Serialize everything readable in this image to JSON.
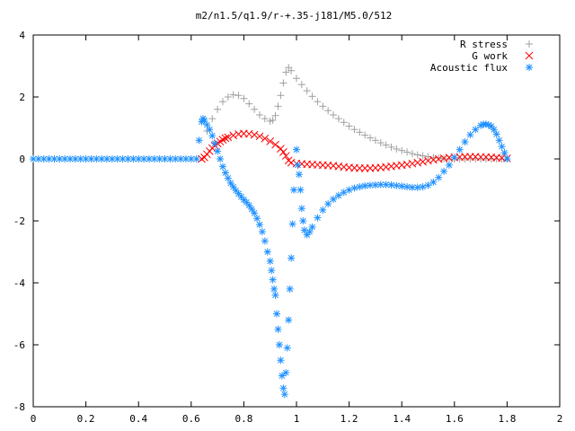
{
  "chart_data": {
    "type": "scatter",
    "title": "m2/n1.5/q1.9/r-+.35-j181/M5.0/512",
    "xlabel": "",
    "ylabel": "",
    "xlim": [
      0,
      2
    ],
    "ylim": [
      -8,
      4
    ],
    "xticks": [
      0,
      0.2,
      0.4,
      0.6,
      0.8,
      1,
      1.2,
      1.4,
      1.6,
      1.8,
      2
    ],
    "yticks": [
      -8,
      -6,
      -4,
      -2,
      0,
      2,
      4
    ],
    "xtick_labels": [
      "0",
      "0.2",
      "0.4",
      "0.6",
      "0.8",
      "1",
      "1.2",
      "1.4",
      "1.6",
      "1.8",
      "2"
    ],
    "ytick_labels": [
      "-8",
      "-6",
      "-4",
      "-2",
      "0",
      "2",
      "4"
    ],
    "grid": false,
    "legend_position": "top-right",
    "series": [
      {
        "name": "R stress",
        "marker": "plus",
        "color": "#a0a0a0",
        "x": [
          0.66,
          0.68,
          0.7,
          0.72,
          0.74,
          0.76,
          0.78,
          0.8,
          0.82,
          0.84,
          0.86,
          0.88,
          0.9,
          0.91,
          0.92,
          0.93,
          0.94,
          0.95,
          0.96,
          0.97,
          0.98,
          1.0,
          1.02,
          1.04,
          1.06,
          1.08,
          1.1,
          1.12,
          1.14,
          1.16,
          1.18,
          1.2,
          1.22,
          1.24,
          1.26,
          1.28,
          1.3,
          1.32,
          1.34,
          1.36,
          1.38,
          1.4,
          1.42,
          1.44,
          1.46,
          1.48,
          1.5,
          1.52,
          1.54,
          1.56,
          1.58,
          1.6,
          1.62,
          1.64,
          1.66,
          1.68,
          1.7,
          1.72,
          1.74,
          1.76,
          1.78,
          1.8
        ],
        "y": [
          0.9,
          1.3,
          1.6,
          1.85,
          2.0,
          2.07,
          2.05,
          1.95,
          1.78,
          1.6,
          1.42,
          1.3,
          1.22,
          1.25,
          1.4,
          1.7,
          2.05,
          2.45,
          2.8,
          2.95,
          2.85,
          2.6,
          2.4,
          2.2,
          2.02,
          1.85,
          1.7,
          1.56,
          1.42,
          1.3,
          1.18,
          1.06,
          0.95,
          0.86,
          0.77,
          0.68,
          0.6,
          0.52,
          0.45,
          0.38,
          0.32,
          0.27,
          0.22,
          0.17,
          0.13,
          0.1,
          0.07,
          0.05,
          0.03,
          0.01,
          0.0,
          0.0,
          0.0,
          0.0,
          0.0,
          0.0,
          0.0,
          0.0,
          0.0,
          0.0,
          0.0,
          0.0
        ]
      },
      {
        "name": "G work",
        "marker": "cross",
        "color": "#ff0000",
        "x": [
          0.64,
          0.65,
          0.66,
          0.67,
          0.68,
          0.69,
          0.7,
          0.71,
          0.72,
          0.73,
          0.74,
          0.76,
          0.78,
          0.8,
          0.82,
          0.84,
          0.86,
          0.88,
          0.9,
          0.92,
          0.94,
          0.95,
          0.96,
          0.97,
          0.98,
          1.0,
          1.02,
          1.04,
          1.06,
          1.08,
          1.1,
          1.12,
          1.14,
          1.16,
          1.18,
          1.2,
          1.22,
          1.24,
          1.26,
          1.28,
          1.3,
          1.32,
          1.34,
          1.36,
          1.38,
          1.4,
          1.42,
          1.44,
          1.46,
          1.48,
          1.5,
          1.52,
          1.54,
          1.56,
          1.58,
          1.6,
          1.62,
          1.64,
          1.66,
          1.68,
          1.7,
          1.72,
          1.74,
          1.76,
          1.78,
          1.8
        ],
        "y": [
          0.0,
          0.05,
          0.15,
          0.25,
          0.35,
          0.43,
          0.5,
          0.56,
          0.62,
          0.67,
          0.7,
          0.76,
          0.8,
          0.82,
          0.81,
          0.78,
          0.73,
          0.66,
          0.57,
          0.46,
          0.33,
          0.22,
          0.1,
          -0.05,
          -0.12,
          -0.15,
          -0.16,
          -0.17,
          -0.18,
          -0.19,
          -0.2,
          -0.21,
          -0.22,
          -0.24,
          -0.26,
          -0.28,
          -0.29,
          -0.3,
          -0.3,
          -0.3,
          -0.29,
          -0.28,
          -0.26,
          -0.24,
          -0.22,
          -0.2,
          -0.18,
          -0.15,
          -0.12,
          -0.09,
          -0.06,
          -0.03,
          0.0,
          0.02,
          0.04,
          0.05,
          0.06,
          0.07,
          0.07,
          0.07,
          0.06,
          0.06,
          0.05,
          0.04,
          0.03,
          0.02
        ]
      },
      {
        "name": "Acoustic flux",
        "marker": "star",
        "color": "#1e90ff",
        "x": [
          0.0,
          0.02,
          0.04,
          0.06,
          0.08,
          0.1,
          0.12,
          0.14,
          0.16,
          0.18,
          0.2,
          0.22,
          0.24,
          0.26,
          0.28,
          0.3,
          0.32,
          0.34,
          0.36,
          0.38,
          0.4,
          0.42,
          0.44,
          0.46,
          0.48,
          0.5,
          0.52,
          0.54,
          0.56,
          0.58,
          0.6,
          0.62,
          0.63,
          0.64,
          0.645,
          0.65,
          0.66,
          0.67,
          0.68,
          0.69,
          0.7,
          0.71,
          0.72,
          0.73,
          0.74,
          0.75,
          0.76,
          0.77,
          0.78,
          0.79,
          0.8,
          0.81,
          0.82,
          0.83,
          0.84,
          0.85,
          0.86,
          0.87,
          0.88,
          0.89,
          0.9,
          0.905,
          0.91,
          0.915,
          0.92,
          0.925,
          0.93,
          0.935,
          0.94,
          0.945,
          0.95,
          0.955,
          0.96,
          0.965,
          0.97,
          0.975,
          0.98,
          0.985,
          0.99,
          1.0,
          1.005,
          1.01,
          1.015,
          1.02,
          1.025,
          1.03,
          1.04,
          1.05,
          1.06,
          1.08,
          1.1,
          1.12,
          1.14,
          1.16,
          1.18,
          1.2,
          1.22,
          1.24,
          1.26,
          1.28,
          1.3,
          1.32,
          1.34,
          1.36,
          1.38,
          1.4,
          1.42,
          1.44,
          1.46,
          1.48,
          1.5,
          1.52,
          1.54,
          1.56,
          1.58,
          1.6,
          1.62,
          1.64,
          1.66,
          1.68,
          1.7,
          1.71,
          1.72,
          1.73,
          1.74,
          1.75,
          1.76,
          1.77,
          1.78,
          1.79,
          1.8
        ],
        "y": [
          0.0,
          0.0,
          0.0,
          0.0,
          0.0,
          0.0,
          0.0,
          0.0,
          0.0,
          0.0,
          0.0,
          0.0,
          0.0,
          0.0,
          0.0,
          0.0,
          0.0,
          0.0,
          0.0,
          0.0,
          0.0,
          0.0,
          0.0,
          0.0,
          0.0,
          0.0,
          0.0,
          0.0,
          0.0,
          0.0,
          0.0,
          0.0,
          0.6,
          1.2,
          1.3,
          1.25,
          1.1,
          0.95,
          0.75,
          0.5,
          0.25,
          0.0,
          -0.25,
          -0.45,
          -0.62,
          -0.78,
          -0.9,
          -1.02,
          -1.12,
          -1.22,
          -1.32,
          -1.4,
          -1.5,
          -1.62,
          -1.75,
          -1.92,
          -2.12,
          -2.35,
          -2.65,
          -3.0,
          -3.3,
          -3.6,
          -3.9,
          -4.2,
          -4.4,
          -5.0,
          -5.5,
          -6.0,
          -6.5,
          -7.0,
          -7.4,
          -7.6,
          -6.9,
          -6.1,
          -5.2,
          -4.2,
          -3.2,
          -2.1,
          -1.0,
          0.3,
          -0.2,
          -0.5,
          -1.0,
          -1.6,
          -2.0,
          -2.3,
          -2.45,
          -2.35,
          -2.2,
          -1.9,
          -1.65,
          -1.45,
          -1.3,
          -1.18,
          -1.08,
          -1.0,
          -0.94,
          -0.9,
          -0.87,
          -0.85,
          -0.84,
          -0.83,
          -0.83,
          -0.84,
          -0.86,
          -0.88,
          -0.9,
          -0.92,
          -0.92,
          -0.9,
          -0.85,
          -0.75,
          -0.6,
          -0.4,
          -0.2,
          0.05,
          0.3,
          0.55,
          0.78,
          0.95,
          1.08,
          1.12,
          1.12,
          1.1,
          1.05,
          0.95,
          0.8,
          0.6,
          0.4,
          0.2,
          0.0
        ]
      }
    ]
  }
}
